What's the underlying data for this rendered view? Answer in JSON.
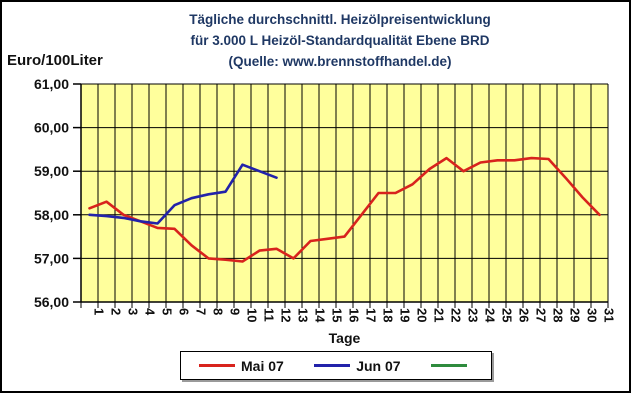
{
  "title": {
    "line1": "Tägliche durchschnittl. Heizölpreisentwicklung",
    "line2": "für 3.000 L Heizöl-Standardqualität Ebene BRD",
    "line3": "(Quelle: www.brennstoffhandel.de)"
  },
  "y_axis_label": "Euro/100Liter",
  "x_axis_label": "Tage",
  "colors": {
    "title_text": "#1f3864",
    "plot_bg": "#ffff9c",
    "grid": "#000000",
    "axis_text": "#111111"
  },
  "chart_data": {
    "type": "line",
    "title": "Tägliche durchschnittl. Heizölpreisentwicklung für 3.000 L Heizöl-Standardqualität Ebene BRD (Quelle: www.brennstoffhandel.de)",
    "xlabel": "Tage",
    "ylabel": "Euro/100Liter",
    "ylim": [
      56,
      61
    ],
    "ytick_step": 1,
    "ytick_labels_top_to_bottom": [
      "61,00",
      "60,00",
      "59,00",
      "58,00",
      "57,00",
      "56,00"
    ],
    "grid": true,
    "legend_position": "bottom",
    "categories": [
      "1",
      "2",
      "3",
      "4",
      "5",
      "6",
      "7",
      "8",
      "9",
      "10",
      "11",
      "12",
      "13",
      "14",
      "15",
      "16",
      "17",
      "18",
      "19",
      "20",
      "21",
      "22",
      "23",
      "24",
      "25",
      "26",
      "27",
      "28",
      "29",
      "30",
      "31"
    ],
    "series": [
      {
        "name": "Mai 07",
        "color": "#d8231d",
        "values": [
          58.15,
          58.3,
          58.0,
          57.85,
          57.7,
          57.68,
          57.3,
          57.0,
          56.97,
          56.93,
          57.18,
          57.22,
          57.0,
          57.4,
          57.45,
          57.5,
          58.0,
          58.5,
          58.5,
          58.7,
          59.05,
          59.3,
          59.0,
          59.2,
          59.25,
          59.25,
          59.3,
          59.28,
          58.85,
          58.4,
          58.0
        ]
      },
      {
        "name": "Jun 07",
        "color": "#2222aa",
        "values": [
          58.0,
          57.97,
          57.93,
          57.85,
          57.8,
          58.22,
          58.38,
          58.47,
          58.53,
          59.15,
          59.0,
          58.85
        ]
      },
      {
        "name": "",
        "color": "#2e8b3d",
        "values": []
      }
    ]
  }
}
